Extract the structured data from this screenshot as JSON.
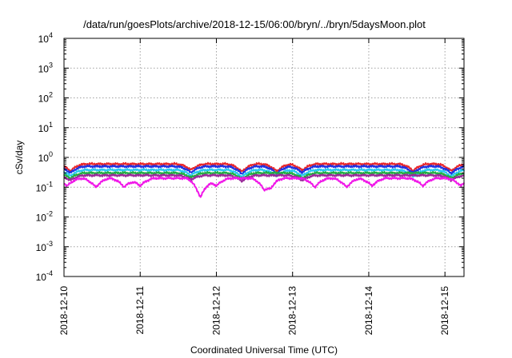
{
  "chart_data": {
    "type": "line",
    "title": "/data/run/goesPlots/archive/2018-12-15/06:00/bryn/../bryn/5daysMoon.plot",
    "xlabel": "Coordinated Universal Time (UTC)",
    "ylabel": "cSv/day",
    "y_scale": "log",
    "ylim": [
      0.0001,
      10000
    ],
    "y_ticks": [
      {
        "value": 0.0001,
        "base": "10",
        "exp": "-4"
      },
      {
        "value": 0.001,
        "base": "10",
        "exp": "-3"
      },
      {
        "value": 0.01,
        "base": "10",
        "exp": "-2"
      },
      {
        "value": 0.1,
        "base": "10",
        "exp": "-1"
      },
      {
        "value": 1,
        "base": "10",
        "exp": "0"
      },
      {
        "value": 10,
        "base": "10",
        "exp": "1"
      },
      {
        "value": 100,
        "base": "10",
        "exp": "2"
      },
      {
        "value": 1000,
        "base": "10",
        "exp": "3"
      },
      {
        "value": 10000,
        "base": "10",
        "exp": "4"
      }
    ],
    "xlim": [
      "2018-12-10T00:00",
      "2018-12-15T06:00"
    ],
    "x_ticks": [
      "2018-12-10",
      "2018-12-11",
      "2018-12-12",
      "2018-12-13",
      "2018-12-14",
      "2018-12-15"
    ],
    "grid": true,
    "series": [
      {
        "color": "#e8262b",
        "level": 0.6,
        "dips": [
          [
            "2018-12-10T02:00",
            0.35
          ],
          [
            "2018-12-11T16:00",
            0.38
          ],
          [
            "2018-12-12T08:00",
            0.33
          ],
          [
            "2018-12-12T19:00",
            0.34
          ],
          [
            "2018-12-13T03:00",
            0.37
          ],
          [
            "2018-12-14T14:00",
            0.36
          ],
          [
            "2018-12-15T02:00",
            0.35
          ]
        ]
      },
      {
        "color": "#2030e0",
        "level": 0.5,
        "dips": [
          [
            "2018-12-10T02:00",
            0.3
          ],
          [
            "2018-12-11T16:00",
            0.31
          ],
          [
            "2018-12-12T08:00",
            0.28
          ],
          [
            "2018-12-12T19:00",
            0.29
          ],
          [
            "2018-12-13T03:00",
            0.31
          ],
          [
            "2018-12-14T14:00",
            0.3
          ],
          [
            "2018-12-15T02:00",
            0.29
          ]
        ]
      },
      {
        "color": "#28c8f0",
        "level": 0.38,
        "dips": [
          [
            "2018-12-10T02:00",
            0.24
          ],
          [
            "2018-12-11T16:00",
            0.25
          ],
          [
            "2018-12-12T08:00",
            0.22
          ],
          [
            "2018-12-12T19:00",
            0.23
          ],
          [
            "2018-12-13T03:00",
            0.24
          ],
          [
            "2018-12-14T14:00",
            0.23
          ],
          [
            "2018-12-15T02:00",
            0.23
          ]
        ]
      },
      {
        "color": "#20b040",
        "level": 0.3,
        "dips": [
          [
            "2018-12-10T02:00",
            0.2
          ],
          [
            "2018-12-11T16:00",
            0.21
          ],
          [
            "2018-12-12T08:00",
            0.19
          ],
          [
            "2018-12-13T03:00",
            0.2
          ],
          [
            "2018-12-15T02:00",
            0.2
          ]
        ]
      },
      {
        "color": "#9a2a9a",
        "level": 0.25,
        "dips": [
          [
            "2018-12-10T02:00",
            0.17
          ],
          [
            "2018-12-11T16:00",
            0.18
          ],
          [
            "2018-12-12T08:00",
            0.16
          ],
          [
            "2018-12-13T03:00",
            0.17
          ],
          [
            "2018-12-15T02:00",
            0.17
          ]
        ]
      },
      {
        "color": "#f018e8",
        "level": 0.2,
        "dips": [
          [
            "2018-12-10T01:00",
            0.11
          ],
          [
            "2018-12-10T10:00",
            0.1
          ],
          [
            "2018-12-10T19:00",
            0.1
          ],
          [
            "2018-12-11T00:00",
            0.11
          ],
          [
            "2018-12-11T19:00",
            0.045
          ],
          [
            "2018-12-12T00:00",
            0.11
          ],
          [
            "2018-12-12T15:00",
            0.1
          ],
          [
            "2018-12-12T17:00",
            0.11
          ],
          [
            "2018-12-13T07:00",
            0.1
          ],
          [
            "2018-12-13T17:00",
            0.1
          ],
          [
            "2018-12-14T01:00",
            0.11
          ],
          [
            "2018-12-14T17:00",
            0.11
          ],
          [
            "2018-12-15T05:00",
            0.11
          ]
        ]
      }
    ]
  }
}
